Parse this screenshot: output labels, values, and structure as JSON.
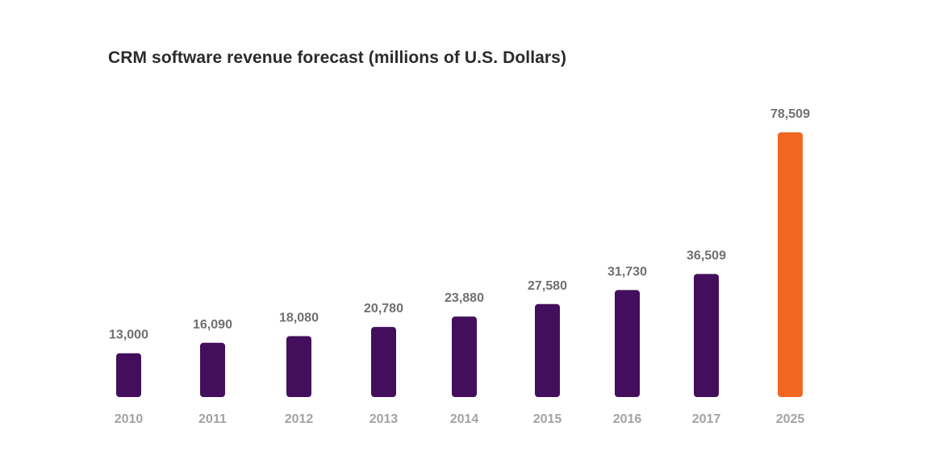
{
  "chart_data": {
    "type": "bar",
    "title": "CRM software revenue forecast (millions of U.S. Dollars)",
    "xlabel": "",
    "ylabel": "",
    "categories": [
      "2010",
      "2011",
      "2012",
      "2013",
      "2014",
      "2015",
      "2016",
      "2017",
      "2025"
    ],
    "values": [
      13000,
      16090,
      18080,
      20780,
      23880,
      27580,
      31730,
      36509,
      78509
    ],
    "value_labels": [
      "13,000",
      "16,090",
      "18,080",
      "20,780",
      "23,880",
      "27,580",
      "31,730",
      "36,509",
      "78,509"
    ],
    "bar_colors": [
      "#430f5c",
      "#430f5c",
      "#430f5c",
      "#430f5c",
      "#430f5c",
      "#430f5c",
      "#430f5c",
      "#430f5c",
      "#f26722"
    ],
    "ylim": [
      0,
      78509
    ],
    "grid": false,
    "legend": "none"
  }
}
